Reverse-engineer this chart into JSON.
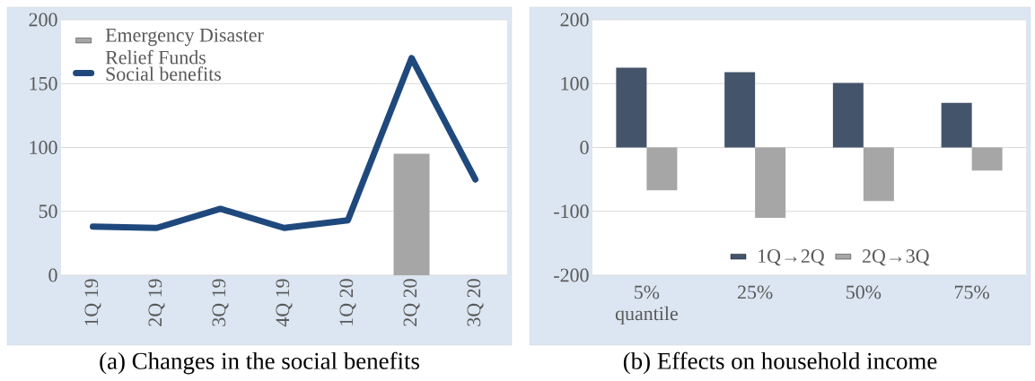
{
  "chart_data": [
    {
      "type": "line",
      "title": "(a)  Changes in the social benefits",
      "categories": [
        "1Q 19",
        "2Q 19",
        "3Q 19",
        "4Q 19",
        "1Q 20",
        "2Q 20",
        "3Q 20"
      ],
      "series": [
        {
          "name": "Emergency Disaster Relief Funds",
          "type": "bar",
          "color": "#a6a6a6",
          "values": [
            null,
            null,
            null,
            null,
            null,
            95,
            null
          ]
        },
        {
          "name": "Social benefits",
          "type": "line",
          "color": "#1f497d",
          "values": [
            38,
            37,
            52,
            37,
            43,
            170,
            75
          ]
        }
      ],
      "ylim": [
        0,
        200
      ],
      "yticks": [
        0,
        50,
        100,
        150,
        200
      ],
      "grid": "y",
      "legend": "top left",
      "marker": "none"
    },
    {
      "type": "bar",
      "title": "(b)  Effects on household income",
      "categories": [
        "5% quantile",
        "25%",
        "50%",
        "75%"
      ],
      "series": [
        {
          "name": "1Q→2Q",
          "color": "#44546a",
          "values": [
            125,
            118,
            101,
            70
          ]
        },
        {
          "name": "2Q→3Q",
          "color": "#a6a6a6",
          "values": [
            -67,
            -110,
            -84,
            -36
          ]
        }
      ],
      "ylim": [
        -200,
        200
      ],
      "yticks": [
        -200,
        -100,
        0,
        100,
        200
      ],
      "grid": "y",
      "legend": "bottom"
    }
  ]
}
